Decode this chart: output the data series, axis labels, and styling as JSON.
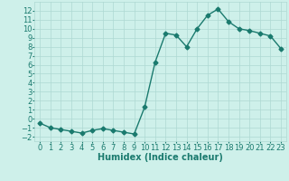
{
  "x": [
    0,
    1,
    2,
    3,
    4,
    5,
    6,
    7,
    8,
    9,
    10,
    11,
    12,
    13,
    14,
    15,
    16,
    17,
    18,
    19,
    20,
    21,
    22,
    23
  ],
  "y": [
    -0.5,
    -1.0,
    -1.2,
    -1.4,
    -1.6,
    -1.3,
    -1.1,
    -1.3,
    -1.5,
    -1.7,
    1.3,
    6.3,
    9.5,
    9.3,
    8.0,
    10.0,
    11.5,
    12.2,
    10.8,
    10.0,
    9.8,
    9.5,
    9.2,
    7.8
  ],
  "color": "#1a7a6e",
  "bg_color": "#cef0ea",
  "grid_color": "#aed8d2",
  "xlabel": "Humidex (Indice chaleur)",
  "xlim": [
    -0.5,
    23.5
  ],
  "ylim": [
    -2.5,
    13.0
  ],
  "yticks": [
    -2,
    -1,
    0,
    1,
    2,
    3,
    4,
    5,
    6,
    7,
    8,
    9,
    10,
    11,
    12
  ],
  "xticks": [
    0,
    1,
    2,
    3,
    4,
    5,
    6,
    7,
    8,
    9,
    10,
    11,
    12,
    13,
    14,
    15,
    16,
    17,
    18,
    19,
    20,
    21,
    22,
    23
  ],
  "marker": "D",
  "markersize": 2.5,
  "linewidth": 1.0,
  "xlabel_fontsize": 7,
  "tick_fontsize": 6
}
